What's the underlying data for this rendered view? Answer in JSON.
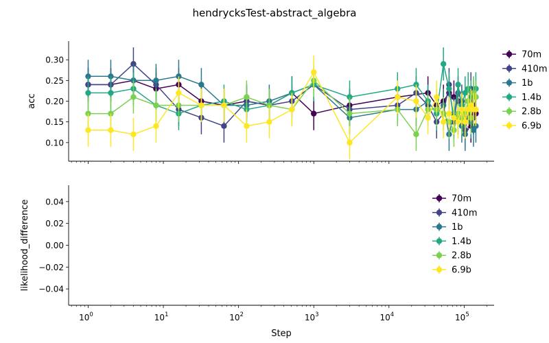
{
  "figure": {
    "title": "hendrycksTest-abstract_algebra"
  },
  "colors": {
    "70m": "#440154",
    "410m": "#414487",
    "1b": "#2a788e",
    "1.4b": "#22a884",
    "2.8b": "#7ad151",
    "6.9b": "#fde725"
  },
  "chart_data": [
    {
      "type": "line",
      "title": "",
      "xlabel": "",
      "ylabel": "acc",
      "xscale": "log",
      "xlim": [
        0.55,
        250000
      ],
      "ylim": [
        0.055,
        0.345
      ],
      "yticks": [
        0.1,
        0.15,
        0.2,
        0.25,
        0.3
      ],
      "ytick_labels": [
        "0.10",
        "0.15",
        "0.20",
        "0.25",
        "0.30"
      ],
      "grid": false,
      "legend": "right, outside",
      "series": [
        {
          "name": "70m",
          "x": [
            1,
            2,
            4,
            8,
            16,
            32,
            64,
            128,
            256,
            512,
            1000,
            3000,
            13000,
            33000,
            43000,
            53000,
            63000,
            73000,
            83000,
            93000,
            103000,
            113000,
            123000,
            133000,
            143000
          ],
          "y": [
            0.24,
            0.24,
            0.25,
            0.23,
            0.24,
            0.2,
            0.19,
            0.2,
            0.19,
            0.22,
            0.17,
            0.19,
            0.21,
            0.22,
            0.19,
            0.2,
            0.22,
            0.21,
            0.2,
            0.19,
            0.15,
            0.2,
            0.14,
            0.19,
            0.17
          ],
          "err": 0.04
        },
        {
          "name": "410m",
          "x": [
            1,
            2,
            4,
            8,
            16,
            32,
            64,
            128,
            256,
            512,
            1000,
            3000,
            13000,
            23000,
            33000,
            43000,
            53000,
            63000,
            73000,
            83000,
            93000,
            103000,
            113000,
            123000,
            133000,
            143000
          ],
          "y": [
            0.24,
            0.24,
            0.29,
            0.24,
            0.18,
            0.16,
            0.14,
            0.2,
            0.19,
            0.2,
            0.24,
            0.18,
            0.19,
            0.22,
            0.19,
            0.15,
            0.17,
            0.24,
            0.15,
            0.22,
            0.2,
            0.13,
            0.17,
            0.23,
            0.16,
            0.21
          ],
          "err": 0.04
        },
        {
          "name": "1b",
          "x": [
            1,
            2,
            4,
            8,
            16,
            32,
            64,
            128,
            256,
            512,
            1000,
            3000,
            13000,
            23000,
            33000,
            43000,
            53000,
            63000,
            73000,
            83000,
            93000,
            103000,
            113000,
            123000,
            133000,
            143000
          ],
          "y": [
            0.26,
            0.26,
            0.25,
            0.25,
            0.26,
            0.24,
            0.19,
            0.19,
            0.2,
            0.22,
            0.24,
            0.16,
            0.18,
            0.18,
            0.2,
            0.17,
            0.19,
            0.12,
            0.17,
            0.16,
            0.14,
            0.12,
            0.2,
            0.15,
            0.13,
            0.14
          ],
          "err": 0.04
        },
        {
          "name": "1.4b",
          "x": [
            1,
            2,
            4,
            8,
            16,
            32,
            64,
            128,
            256,
            512,
            1000,
            3000,
            13000,
            23000,
            33000,
            43000,
            53000,
            63000,
            73000,
            83000,
            93000,
            103000,
            113000,
            123000,
            133000,
            143000
          ],
          "y": [
            0.22,
            0.22,
            0.23,
            0.19,
            0.17,
            0.19,
            0.2,
            0.18,
            0.19,
            0.22,
            0.24,
            0.21,
            0.23,
            0.24,
            0.2,
            0.17,
            0.29,
            0.23,
            0.16,
            0.24,
            0.19,
            0.22,
            0.23,
            0.21,
            0.22,
            0.23
          ],
          "err": 0.04
        },
        {
          "name": "2.8b",
          "x": [
            1,
            2,
            4,
            8,
            16,
            32,
            64,
            128,
            256,
            512,
            1000,
            3000,
            13000,
            23000,
            33000,
            43000,
            53000,
            63000,
            73000,
            83000,
            93000,
            103000,
            113000,
            123000,
            133000,
            143000
          ],
          "y": [
            0.17,
            0.17,
            0.21,
            0.19,
            0.19,
            0.19,
            0.19,
            0.21,
            0.19,
            0.18,
            0.25,
            0.17,
            0.18,
            0.12,
            0.18,
            0.18,
            0.17,
            0.15,
            0.13,
            0.17,
            0.16,
            0.17,
            0.2,
            0.16,
            0.22,
            0.21
          ],
          "err": 0.04
        },
        {
          "name": "6.9b",
          "x": [
            1,
            2,
            4,
            8,
            16,
            32,
            64,
            128,
            256,
            512,
            1000,
            3000,
            13000,
            23000,
            33000,
            43000,
            53000,
            63000,
            73000,
            83000,
            93000,
            103000,
            113000,
            123000,
            133000,
            143000
          ],
          "y": [
            0.13,
            0.13,
            0.12,
            0.14,
            0.22,
            0.19,
            0.19,
            0.14,
            0.15,
            0.18,
            0.27,
            0.1,
            0.21,
            0.2,
            0.16,
            0.21,
            0.15,
            0.17,
            0.16,
            0.15,
            0.18,
            0.15,
            0.18,
            0.19,
            0.18,
            0.18
          ],
          "err": 0.04
        }
      ]
    },
    {
      "type": "line",
      "title": "",
      "xlabel": "Step",
      "ylabel": "likelihood_difference",
      "xscale": "log",
      "xlim": [
        0.55,
        250000
      ],
      "ylim": [
        -0.055,
        0.055
      ],
      "xticks": [
        1,
        10,
        100,
        1000,
        10000,
        100000
      ],
      "xtick_base": "10",
      "xtick_exponents": [
        "0",
        "1",
        "2",
        "3",
        "4",
        "5"
      ],
      "yticks": [
        -0.04,
        -0.02,
        0.0,
        0.02,
        0.04
      ],
      "ytick_labels": [
        "−0.04",
        "−0.02",
        "0.00",
        "0.02",
        "0.04"
      ],
      "grid": false,
      "legend": "upper right",
      "series": [
        {
          "name": "70m",
          "x": [],
          "y": []
        },
        {
          "name": "410m",
          "x": [],
          "y": []
        },
        {
          "name": "1b",
          "x": [],
          "y": []
        },
        {
          "name": "1.4b",
          "x": [],
          "y": []
        },
        {
          "name": "2.8b",
          "x": [],
          "y": []
        },
        {
          "name": "6.9b",
          "x": [],
          "y": []
        }
      ]
    }
  ]
}
